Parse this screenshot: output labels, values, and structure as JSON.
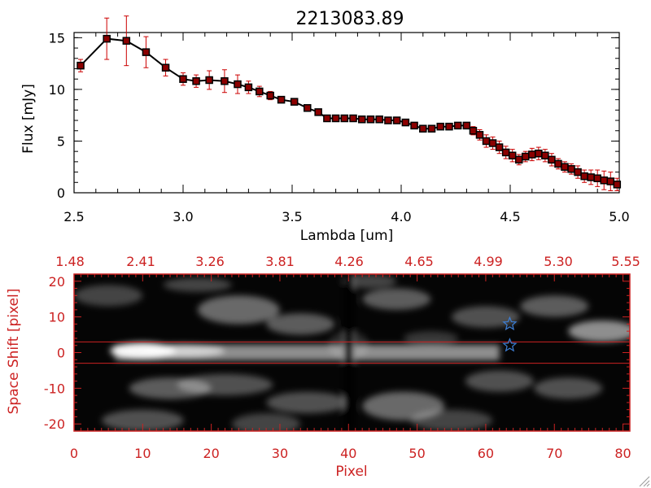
{
  "title": "2213083.89",
  "colors": {
    "line": "#000000",
    "error_bar": "#cc0000",
    "marker_fill": "#8b0000",
    "bottom_frame": "#cc2222",
    "star": "#3d7fd6"
  },
  "chart_data": [
    {
      "type": "line",
      "xlabel": "Lambda [um]",
      "ylabel": "Flux [mJy]",
      "xlim": [
        2.5,
        5.0
      ],
      "ylim": [
        0,
        15.5
      ],
      "x_ticks": [
        "2.5",
        "3.0",
        "3.5",
        "4.0",
        "4.5",
        "5.0"
      ],
      "y_ticks": [
        "0",
        "5",
        "10",
        "15"
      ],
      "grid": false,
      "series": [
        {
          "x": [
            2.53,
            2.65,
            2.74,
            2.83,
            2.92,
            3.0,
            3.06,
            3.12,
            3.19,
            3.25,
            3.3,
            3.35,
            3.4,
            3.45,
            3.51,
            3.57,
            3.62,
            3.66,
            3.7,
            3.74,
            3.78,
            3.82,
            3.86,
            3.9,
            3.94,
            3.98,
            4.02,
            4.06,
            4.1,
            4.14,
            4.18,
            4.22,
            4.26,
            4.3,
            4.33,
            4.36,
            4.39,
            4.42,
            4.45,
            4.48,
            4.51,
            4.54,
            4.57,
            4.6,
            4.63,
            4.66,
            4.69,
            4.72,
            4.75,
            4.78,
            4.81,
            4.84,
            4.87,
            4.9,
            4.93,
            4.96,
            4.99
          ],
          "y": [
            12.3,
            14.9,
            14.7,
            13.6,
            12.1,
            11.0,
            10.8,
            10.9,
            10.8,
            10.5,
            10.2,
            9.8,
            9.4,
            9.0,
            8.8,
            8.2,
            7.8,
            7.2,
            7.2,
            7.2,
            7.2,
            7.1,
            7.1,
            7.1,
            7.0,
            7.0,
            6.8,
            6.5,
            6.2,
            6.2,
            6.4,
            6.4,
            6.5,
            6.5,
            6.0,
            5.6,
            5.0,
            4.8,
            4.4,
            3.9,
            3.6,
            3.2,
            3.5,
            3.7,
            3.8,
            3.6,
            3.2,
            2.8,
            2.5,
            2.3,
            2.0,
            1.6,
            1.5,
            1.4,
            1.2,
            1.1,
            0.8
          ],
          "yerr": [
            0.6,
            2.0,
            2.4,
            1.5,
            0.8,
            0.6,
            0.6,
            0.9,
            1.1,
            0.9,
            0.6,
            0.5,
            0.4,
            0.3,
            0.3,
            0.3,
            0.3,
            0.2,
            0.2,
            0.2,
            0.2,
            0.2,
            0.2,
            0.2,
            0.2,
            0.2,
            0.3,
            0.3,
            0.3,
            0.3,
            0.3,
            0.3,
            0.3,
            0.3,
            0.4,
            0.5,
            0.6,
            0.6,
            0.6,
            0.6,
            0.6,
            0.5,
            0.5,
            0.6,
            0.6,
            0.6,
            0.6,
            0.5,
            0.5,
            0.5,
            0.6,
            0.6,
            0.7,
            0.8,
            0.9,
            0.9,
            0.6
          ]
        }
      ]
    },
    {
      "type": "heatmap",
      "xlabel": "Pixel",
      "ylabel": "Space Shift [pixel]",
      "xlim": [
        0,
        81
      ],
      "ylim": [
        -22,
        22
      ],
      "x_ticks": [
        "0",
        "10",
        "20",
        "30",
        "40",
        "50",
        "60",
        "70",
        "80"
      ],
      "y_ticks": [
        "-20",
        "-10",
        "0",
        "10",
        "20"
      ],
      "top_axis_labels": [
        "1.48",
        "2.41",
        "3.26",
        "3.81",
        "4.26",
        "4.65",
        "4.99",
        "5.30",
        "5.55"
      ],
      "horizontal_lines_y": [
        3,
        -3
      ],
      "stars": [
        {
          "x": 63.5,
          "y": 8
        },
        {
          "x": 63.5,
          "y": 2
        }
      ]
    }
  ]
}
